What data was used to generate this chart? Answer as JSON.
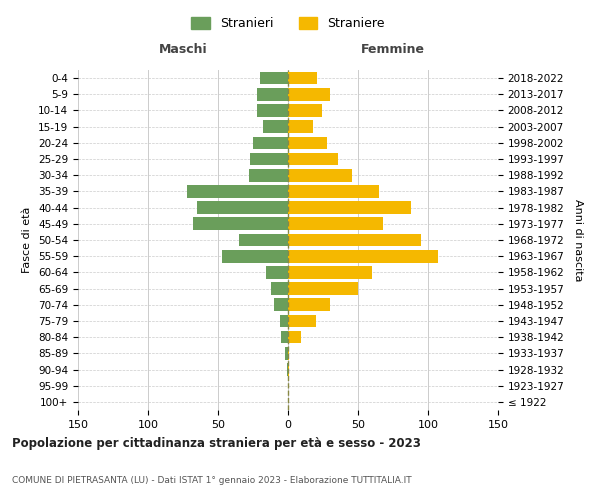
{
  "age_groups": [
    "100+",
    "95-99",
    "90-94",
    "85-89",
    "80-84",
    "75-79",
    "70-74",
    "65-69",
    "60-64",
    "55-59",
    "50-54",
    "45-49",
    "40-44",
    "35-39",
    "30-34",
    "25-29",
    "20-24",
    "15-19",
    "10-14",
    "5-9",
    "0-4"
  ],
  "birth_years": [
    "≤ 1922",
    "1923-1927",
    "1928-1932",
    "1933-1937",
    "1938-1942",
    "1943-1947",
    "1948-1952",
    "1953-1957",
    "1958-1962",
    "1963-1967",
    "1968-1972",
    "1973-1977",
    "1978-1982",
    "1983-1987",
    "1988-1992",
    "1993-1997",
    "1998-2002",
    "2003-2007",
    "2008-2012",
    "2013-2017",
    "2018-2022"
  ],
  "maschi": [
    0,
    0,
    1,
    2,
    5,
    6,
    10,
    12,
    16,
    47,
    35,
    68,
    65,
    72,
    28,
    27,
    25,
    18,
    22,
    22,
    20
  ],
  "femmine": [
    0,
    0,
    1,
    1,
    9,
    20,
    30,
    50,
    60,
    107,
    95,
    68,
    88,
    65,
    46,
    36,
    28,
    18,
    24,
    30,
    21
  ],
  "maschi_color": "#6a9e5b",
  "femmine_color": "#f5b800",
  "background_color": "#ffffff",
  "grid_color": "#cccccc",
  "title": "Popolazione per cittadinanza straniera per età e sesso - 2023",
  "subtitle": "COMUNE DI PIETRASANTA (LU) - Dati ISTAT 1° gennaio 2023 - Elaborazione TUTTITALIA.IT",
  "xlabel_left": "Maschi",
  "xlabel_right": "Femmine",
  "ylabel_left": "Fasce di età",
  "ylabel_right": "Anni di nascita",
  "legend_maschi": "Stranieri",
  "legend_femmine": "Straniere",
  "xlim": 150
}
